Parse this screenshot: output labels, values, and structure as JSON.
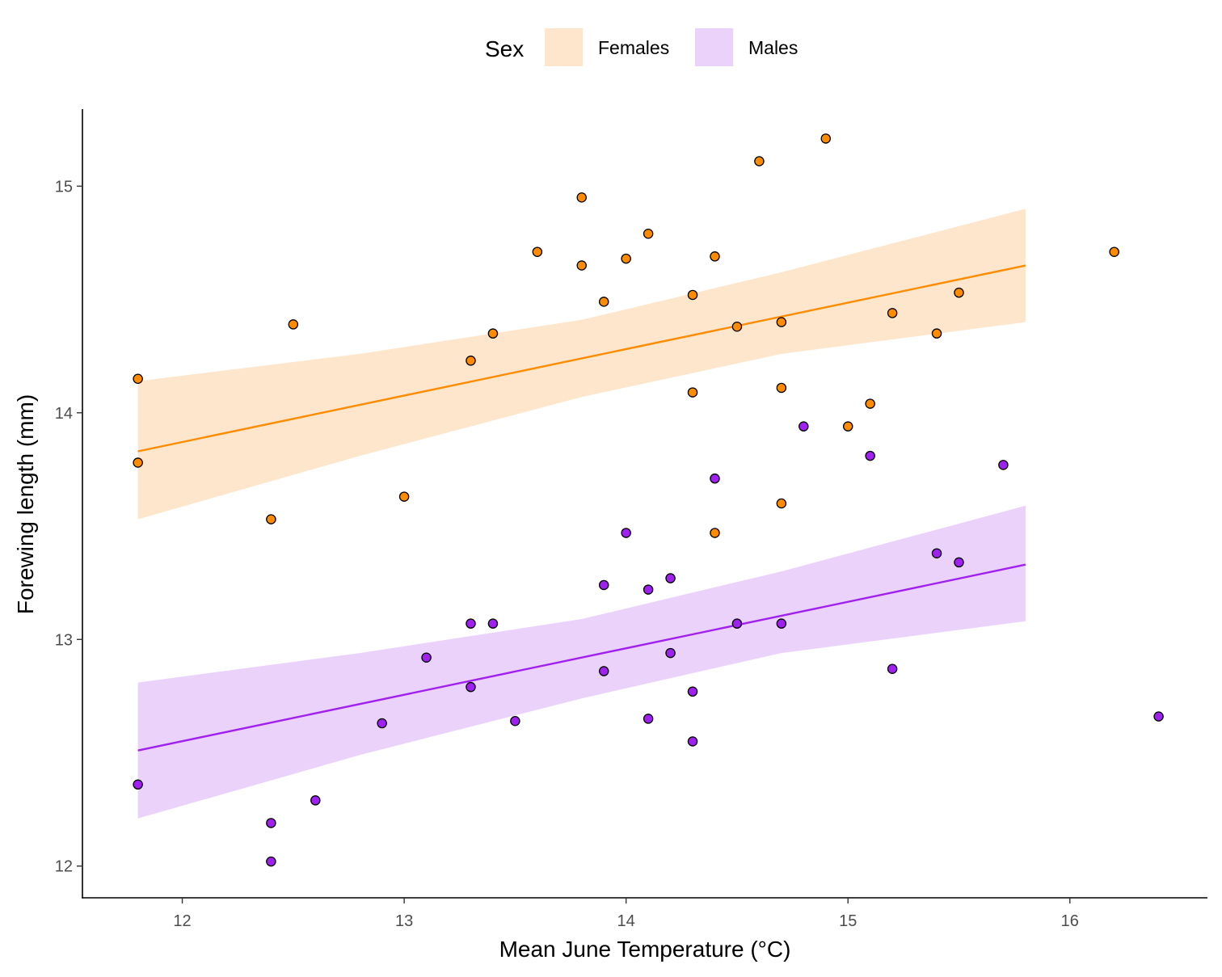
{
  "chart_data": {
    "type": "scatter",
    "xlabel": "Mean June Temperature (°C)",
    "ylabel": "Forewing length (mm)",
    "xlim": [
      11.55,
      16.62
    ],
    "ylim": [
      11.86,
      15.34
    ],
    "x_ticks": [
      12,
      13,
      14,
      15,
      16
    ],
    "y_ticks": [
      12,
      13,
      14,
      15
    ],
    "grid": false,
    "legend": {
      "title": "Sex",
      "position": "top"
    },
    "series": [
      {
        "name": "Females",
        "color": "#ff8c00",
        "band_color": "#fde6cc",
        "points": [
          [
            11.8,
            14.15
          ],
          [
            11.8,
            13.78
          ],
          [
            12.4,
            13.53
          ],
          [
            12.5,
            14.39
          ],
          [
            13.0,
            13.63
          ],
          [
            13.3,
            14.23
          ],
          [
            13.4,
            14.35
          ],
          [
            13.6,
            14.71
          ],
          [
            13.8,
            14.95
          ],
          [
            13.8,
            14.65
          ],
          [
            13.9,
            14.49
          ],
          [
            14.0,
            14.68
          ],
          [
            14.1,
            14.79
          ],
          [
            14.3,
            14.52
          ],
          [
            14.3,
            14.09
          ],
          [
            14.4,
            14.69
          ],
          [
            14.4,
            13.47
          ],
          [
            14.5,
            14.38
          ],
          [
            14.6,
            15.11
          ],
          [
            14.7,
            14.4
          ],
          [
            14.7,
            14.11
          ],
          [
            14.7,
            13.6
          ],
          [
            14.9,
            15.21
          ],
          [
            15.0,
            13.94
          ],
          [
            15.1,
            14.04
          ],
          [
            15.2,
            14.44
          ],
          [
            15.4,
            14.35
          ],
          [
            15.5,
            14.53
          ],
          [
            16.2,
            14.71
          ]
        ],
        "fit": {
          "x": [
            11.8,
            15.8
          ],
          "y": [
            13.83,
            14.65
          ]
        },
        "band": {
          "x": [
            11.8,
            12.8,
            13.8,
            14.7,
            15.8
          ],
          "upper": [
            14.14,
            14.26,
            14.41,
            14.62,
            14.9
          ],
          "lower": [
            13.53,
            13.81,
            14.07,
            14.26,
            14.4
          ]
        }
      },
      {
        "name": "Males",
        "color": "#a020f0",
        "band_color": "#ebd2fb",
        "points": [
          [
            11.8,
            12.36
          ],
          [
            12.4,
            12.19
          ],
          [
            12.4,
            12.02
          ],
          [
            12.6,
            12.29
          ],
          [
            12.9,
            12.63
          ],
          [
            13.1,
            12.92
          ],
          [
            13.3,
            13.07
          ],
          [
            13.3,
            12.79
          ],
          [
            13.4,
            13.07
          ],
          [
            13.5,
            12.64
          ],
          [
            13.9,
            13.24
          ],
          [
            13.9,
            12.86
          ],
          [
            14.0,
            13.47
          ],
          [
            14.1,
            13.22
          ],
          [
            14.1,
            12.65
          ],
          [
            14.2,
            13.27
          ],
          [
            14.2,
            12.94
          ],
          [
            14.3,
            12.77
          ],
          [
            14.3,
            12.55
          ],
          [
            14.4,
            13.71
          ],
          [
            14.5,
            13.07
          ],
          [
            14.7,
            13.07
          ],
          [
            14.8,
            13.94
          ],
          [
            15.1,
            13.81
          ],
          [
            15.2,
            12.87
          ],
          [
            15.4,
            13.38
          ],
          [
            15.5,
            13.34
          ],
          [
            15.7,
            13.77
          ],
          [
            16.4,
            12.66
          ]
        ],
        "fit": {
          "x": [
            11.8,
            15.8
          ],
          "y": [
            12.51,
            13.33
          ]
        },
        "band": {
          "x": [
            11.8,
            12.8,
            13.8,
            14.7,
            15.8
          ],
          "upper": [
            12.81,
            12.94,
            13.09,
            13.3,
            13.59
          ],
          "lower": [
            12.21,
            12.49,
            12.74,
            12.94,
            13.08
          ]
        }
      }
    ]
  }
}
